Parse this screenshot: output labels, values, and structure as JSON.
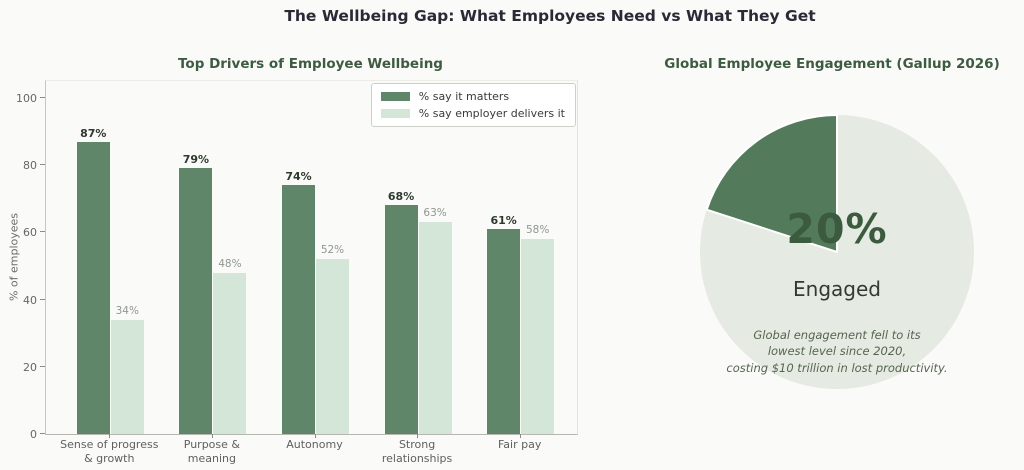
{
  "page": {
    "title": "The Wellbeing Gap: What Employees Need vs What They Get",
    "background": "#fafaf8"
  },
  "colors": {
    "dark_green": "#60866a",
    "light_green": "#d3e6d8",
    "pie_engaged": "#547a5c",
    "pie_remainder": "#e5eae2",
    "title_green": "#3d5b41"
  },
  "chart_data": [
    {
      "type": "bar",
      "title": "Top Drivers of Employee Wellbeing",
      "categories": [
        "Sense of progress\n& growth",
        "Purpose &\nmeaning",
        "Autonomy",
        "Strong\nrelationships",
        "Fair pay"
      ],
      "series": [
        {
          "name": "% say it matters",
          "values": [
            87,
            79,
            74,
            68,
            61
          ],
          "color": "#60866a"
        },
        {
          "name": "% say employer delivers it",
          "values": [
            34,
            48,
            52,
            63,
            58
          ],
          "color": "#d3e6d8"
        }
      ],
      "xlabel": "",
      "ylabel": "% of employees",
      "ylim": [
        0,
        105
      ],
      "yticks": [
        0,
        20,
        40,
        60,
        80,
        100
      ],
      "grid": false,
      "legend_position": "upper right"
    },
    {
      "type": "pie",
      "title": "Global Employee Engagement (Gallup 2026)",
      "slices": [
        {
          "label": "Engaged",
          "value": 20,
          "color": "#547a5c"
        },
        {
          "label": "",
          "value": 80,
          "color": "#e5eae2"
        }
      ],
      "start_angle": 90,
      "counterclock": true,
      "center_label": "20%",
      "center_sublabel": "Engaged",
      "annotation": "Global engagement fell to its\nlowest level since 2020,\ncosting $10 trillion in lost productivity."
    }
  ]
}
